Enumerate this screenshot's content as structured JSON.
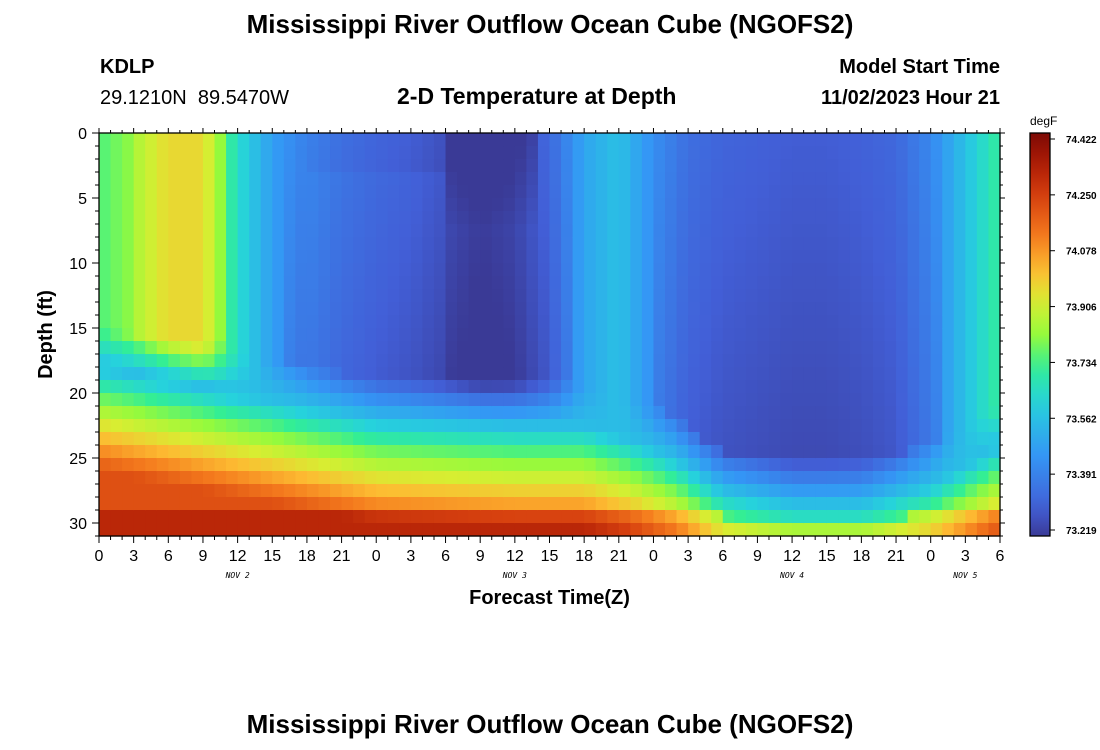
{
  "page": {
    "title": "Mississippi River Outflow Ocean Cube (NGOFS2)",
    "station_id": "KDLP",
    "station_coords": "29.1210N  89.5470W",
    "subtitle": "2-D Temperature at Depth",
    "model_start_label": "Model Start Time",
    "model_start_time": "11/02/2023 Hour 21",
    "footer_title": "Mississippi River Outflow Ocean Cube (NGOFS2)"
  },
  "chart_data": {
    "type": "heatmap",
    "title": "2-D Temperature at Depth",
    "xlabel": "Forecast Time(Z)",
    "ylabel": "Depth (ft)",
    "x_range_hours": [
      0,
      78
    ],
    "y_range_ft": [
      0,
      31
    ],
    "y_inverted": true,
    "x_tick_labels": [
      "0",
      "3",
      "6",
      "9",
      "12",
      "15",
      "18",
      "21",
      "0",
      "3",
      "6",
      "9",
      "12",
      "15",
      "18",
      "21",
      "0",
      "3",
      "6",
      "9",
      "12",
      "15",
      "18",
      "21",
      "0",
      "3",
      "6"
    ],
    "y_tick_labels": [
      "0",
      "5",
      "10",
      "15",
      "20",
      "25",
      "30"
    ],
    "y_ticks": [
      0,
      5,
      10,
      15,
      20,
      25,
      30
    ],
    "date_labels": [
      {
        "label": "NOV 2",
        "hour": 12
      },
      {
        "label": "NOV 3",
        "hour": 36
      },
      {
        "label": "NOV 4",
        "hour": 60
      },
      {
        "label": "NOV 5",
        "hour": 75
      }
    ],
    "colorbar": {
      "unit": "degF",
      "min": 73.219,
      "max": 74.422,
      "tick_labels": [
        "74.422",
        "74.250",
        "74.078",
        "73.906",
        "73.734",
        "73.562",
        "73.391",
        "73.219"
      ]
    },
    "pcolor_grid": {
      "x_step_hours": 1,
      "depth_levels_ft": [
        0,
        1,
        2,
        3,
        4,
        5,
        6,
        7,
        8,
        9,
        10,
        11,
        12,
        13,
        14,
        15,
        16,
        17,
        18,
        19,
        20,
        21,
        22,
        23,
        24,
        25,
        26,
        27,
        28,
        29,
        30,
        31
      ]
    },
    "thermocline_depth_ft": [
      {
        "hour": 0,
        "depth": 18
      },
      {
        "hour": 12,
        "depth": 20
      },
      {
        "hour": 24,
        "depth": 22
      },
      {
        "hour": 36,
        "depth": 22.5
      },
      {
        "hour": 42,
        "depth": 22.5
      },
      {
        "hour": 46,
        "depth": 23.5
      },
      {
        "hour": 50,
        "depth": 25
      },
      {
        "hour": 54,
        "depth": 27.5
      },
      {
        "hour": 60,
        "depth": 28.5
      },
      {
        "hour": 66,
        "depth": 28.5
      },
      {
        "hour": 72,
        "depth": 27
      },
      {
        "hour": 78,
        "depth": 24
      }
    ],
    "surface_temperature_degF": [
      {
        "hour": 0,
        "value": 73.75
      },
      {
        "hour": 3,
        "value": 73.82
      },
      {
        "hour": 6,
        "value": 73.93
      },
      {
        "hour": 9,
        "value": 73.93
      },
      {
        "hour": 12,
        "value": 73.65
      },
      {
        "hour": 15,
        "value": 73.48
      },
      {
        "hour": 18,
        "value": 73.4
      },
      {
        "hour": 21,
        "value": 73.35
      },
      {
        "hour": 24,
        "value": 73.32
      },
      {
        "hour": 27,
        "value": 73.3
      },
      {
        "hour": 30,
        "value": 73.27
      },
      {
        "hour": 33,
        "value": 73.24
      },
      {
        "hour": 36,
        "value": 73.26
      },
      {
        "hour": 39,
        "value": 73.33
      },
      {
        "hour": 42,
        "value": 73.5
      },
      {
        "hour": 45,
        "value": 73.57
      },
      {
        "hour": 48,
        "value": 73.44
      },
      {
        "hour": 51,
        "value": 73.35
      },
      {
        "hour": 54,
        "value": 73.32
      },
      {
        "hour": 57,
        "value": 73.31
      },
      {
        "hour": 60,
        "value": 73.3
      },
      {
        "hour": 63,
        "value": 73.3
      },
      {
        "hour": 66,
        "value": 73.31
      },
      {
        "hour": 69,
        "value": 73.33
      },
      {
        "hour": 72,
        "value": 73.42
      },
      {
        "hour": 75,
        "value": 73.57
      },
      {
        "hour": 78,
        "value": 73.72
      }
    ]
  }
}
